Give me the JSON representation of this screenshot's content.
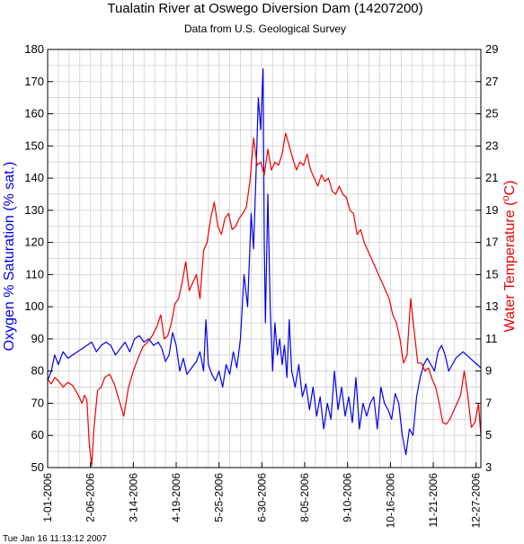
{
  "chart_data": {
    "type": "line",
    "title": "Tualatin River at Oswego Diversion Dam (14207200)",
    "subtitle": "Data from U.S. Geological Survey",
    "xlabel": "",
    "y_left": {
      "label": "Oxygen % Saturation (% sat.)",
      "range": [
        50,
        180
      ],
      "ticks": [
        50,
        60,
        70,
        80,
        90,
        100,
        110,
        120,
        130,
        140,
        150,
        160,
        170,
        180
      ],
      "color": "#0000ee"
    },
    "y_right": {
      "label_main": "Water Temperature (",
      "label_sup": "o",
      "label_end": "C)",
      "range": [
        3,
        29
      ],
      "ticks": [
        3,
        5,
        7,
        9,
        11,
        13,
        15,
        17,
        19,
        21,
        23,
        25,
        27,
        29
      ],
      "color": "#ee0000"
    },
    "x_range": [
      "2006-01-01",
      "2006-12-31"
    ],
    "x_ticks": [
      {
        "date": "2006-01-01",
        "label": "1-01-2006"
      },
      {
        "date": "2006-02-06",
        "label": "2-06-2006"
      },
      {
        "date": "2006-03-14",
        "label": "3-14-2006"
      },
      {
        "date": "2006-04-19",
        "label": "4-19-2006"
      },
      {
        "date": "2006-05-25",
        "label": "5-25-2006"
      },
      {
        "date": "2006-06-30",
        "label": "6-30-2006"
      },
      {
        "date": "2006-08-05",
        "label": "8-05-2006"
      },
      {
        "date": "2006-09-10",
        "label": "9-10-2006"
      },
      {
        "date": "2006-10-16",
        "label": "10-16-2006"
      },
      {
        "date": "2006-11-21",
        "label": "11-21-2006"
      },
      {
        "date": "2006-12-27",
        "label": "12-27-2006"
      }
    ],
    "grid": true,
    "series": [
      {
        "axis": "left",
        "color": "#0000ee",
        "x": [
          "2006-01-01",
          "2006-01-04",
          "2006-01-07",
          "2006-01-10",
          "2006-01-14",
          "2006-01-18",
          "2006-01-22",
          "2006-01-26",
          "2006-01-30",
          "2006-02-03",
          "2006-02-07",
          "2006-02-11",
          "2006-02-15",
          "2006-02-19",
          "2006-02-23",
          "2006-02-27",
          "2006-03-03",
          "2006-03-07",
          "2006-03-11",
          "2006-03-15",
          "2006-03-19",
          "2006-03-23",
          "2006-03-27",
          "2006-03-31",
          "2006-04-04",
          "2006-04-07",
          "2006-04-10",
          "2006-04-13",
          "2006-04-16",
          "2006-04-19",
          "2006-04-22",
          "2006-04-25",
          "2006-04-28",
          "2006-05-02",
          "2006-05-06",
          "2006-05-09",
          "2006-05-12",
          "2006-05-14",
          "2006-05-16",
          "2006-05-19",
          "2006-05-22",
          "2006-05-25",
          "2006-05-28",
          "2006-05-31",
          "2006-06-03",
          "2006-06-06",
          "2006-06-09",
          "2006-06-12",
          "2006-06-15",
          "2006-06-18",
          "2006-06-21",
          "2006-06-23",
          "2006-06-25",
          "2006-06-27",
          "2006-06-29",
          "2006-07-01",
          "2006-07-02",
          "2006-07-03",
          "2006-07-05",
          "2006-07-07",
          "2006-07-09",
          "2006-07-11",
          "2006-07-13",
          "2006-07-15",
          "2006-07-17",
          "2006-07-19",
          "2006-07-21",
          "2006-07-23",
          "2006-07-25",
          "2006-07-28",
          "2006-07-31",
          "2006-08-03",
          "2006-08-06",
          "2006-08-09",
          "2006-08-12",
          "2006-08-15",
          "2006-08-18",
          "2006-08-21",
          "2006-08-24",
          "2006-08-27",
          "2006-08-30",
          "2006-09-02",
          "2006-09-05",
          "2006-09-08",
          "2006-09-11",
          "2006-09-14",
          "2006-09-17",
          "2006-09-20",
          "2006-09-23",
          "2006-09-26",
          "2006-09-29",
          "2006-10-02",
          "2006-10-05",
          "2006-10-08",
          "2006-10-11",
          "2006-10-14",
          "2006-10-17",
          "2006-10-20",
          "2006-10-23",
          "2006-10-26",
          "2006-10-29",
          "2006-11-01",
          "2006-11-04",
          "2006-11-07",
          "2006-11-10",
          "2006-11-13",
          "2006-11-16",
          "2006-11-19",
          "2006-11-22",
          "2006-11-25",
          "2006-11-28",
          "2006-12-01",
          "2006-12-04",
          "2006-12-07",
          "2006-12-10",
          "2006-12-13",
          "2006-12-16",
          "2006-12-19",
          "2006-12-22",
          "2006-12-25",
          "2006-12-28",
          "2006-12-31"
        ],
        "y": [
          77,
          80,
          85,
          82,
          86,
          84,
          85,
          86,
          87,
          88,
          89,
          86,
          88,
          89,
          88,
          85,
          87,
          89,
          86,
          90,
          91,
          89,
          90,
          88,
          89,
          87,
          83,
          85,
          92,
          88,
          80,
          84,
          79,
          81,
          83,
          86,
          80,
          96,
          82,
          79,
          77,
          80,
          75,
          82,
          79,
          86,
          81,
          90,
          110,
          100,
          129,
          118,
          140,
          165,
          155,
          174,
          120,
          95,
          135,
          100,
          80,
          95,
          85,
          90,
          82,
          88,
          78,
          96,
          80,
          75,
          82,
          72,
          76,
          68,
          75,
          66,
          72,
          62,
          70,
          65,
          80,
          68,
          75,
          66,
          72,
          64,
          78,
          62,
          70,
          66,
          70,
          72,
          62,
          75,
          70,
          68,
          65,
          73,
          70,
          60,
          54,
          62,
          60,
          72,
          78,
          82,
          84,
          82,
          80,
          86,
          88,
          85,
          80,
          82,
          84,
          85,
          86,
          85,
          84,
          83,
          82,
          81
        ]
      },
      {
        "axis": "right",
        "color": "#ee0000",
        "x": [
          "2006-01-01",
          "2006-01-04",
          "2006-01-07",
          "2006-01-10",
          "2006-01-14",
          "2006-01-18",
          "2006-01-22",
          "2006-01-26",
          "2006-01-30",
          "2006-02-01",
          "2006-02-03",
          "2006-02-05",
          "2006-02-07",
          "2006-02-09",
          "2006-02-12",
          "2006-02-15",
          "2006-02-18",
          "2006-02-22",
          "2006-02-26",
          "2006-03-02",
          "2006-03-06",
          "2006-03-10",
          "2006-03-14",
          "2006-03-18",
          "2006-03-22",
          "2006-03-26",
          "2006-03-30",
          "2006-04-03",
          "2006-04-06",
          "2006-04-09",
          "2006-04-12",
          "2006-04-15",
          "2006-04-18",
          "2006-04-21",
          "2006-04-24",
          "2006-04-27",
          "2006-04-30",
          "2006-05-03",
          "2006-05-06",
          "2006-05-09",
          "2006-05-12",
          "2006-05-15",
          "2006-05-18",
          "2006-05-21",
          "2006-05-24",
          "2006-05-27",
          "2006-05-30",
          "2006-06-02",
          "2006-06-05",
          "2006-06-08",
          "2006-06-11",
          "2006-06-14",
          "2006-06-17",
          "2006-06-20",
          "2006-06-23",
          "2006-06-26",
          "2006-06-29",
          "2006-07-02",
          "2006-07-05",
          "2006-07-08",
          "2006-07-11",
          "2006-07-14",
          "2006-07-17",
          "2006-07-20",
          "2006-07-23",
          "2006-07-26",
          "2006-07-29",
          "2006-08-01",
          "2006-08-04",
          "2006-08-07",
          "2006-08-10",
          "2006-08-13",
          "2006-08-16",
          "2006-08-19",
          "2006-08-22",
          "2006-08-25",
          "2006-08-28",
          "2006-08-31",
          "2006-09-03",
          "2006-09-06",
          "2006-09-09",
          "2006-09-12",
          "2006-09-15",
          "2006-09-18",
          "2006-09-21",
          "2006-09-24",
          "2006-09-27",
          "2006-09-30",
          "2006-10-03",
          "2006-10-06",
          "2006-10-09",
          "2006-10-12",
          "2006-10-15",
          "2006-10-18",
          "2006-10-21",
          "2006-10-24",
          "2006-10-27",
          "2006-10-30",
          "2006-11-02",
          "2006-11-05",
          "2006-11-08",
          "2006-11-11",
          "2006-11-14",
          "2006-11-17",
          "2006-11-20",
          "2006-11-23",
          "2006-11-26",
          "2006-11-29",
          "2006-12-02",
          "2006-12-05",
          "2006-12-08",
          "2006-12-11",
          "2006-12-14",
          "2006-12-17",
          "2006-12-20",
          "2006-12-23",
          "2006-12-26",
          "2006-12-29",
          "2006-12-31"
        ],
        "y": [
          8.5,
          8.2,
          8.6,
          8.4,
          8.0,
          8.3,
          8.1,
          7.6,
          7.0,
          7.5,
          7.2,
          4.5,
          3.1,
          5.5,
          7.8,
          8.0,
          8.6,
          8.8,
          8.2,
          7.2,
          6.2,
          8.0,
          9.0,
          9.8,
          10.5,
          10.8,
          11.2,
          11.8,
          12.5,
          11.0,
          11.2,
          12.0,
          13.2,
          13.5,
          14.5,
          15.8,
          14.0,
          14.5,
          15.0,
          13.5,
          16.5,
          17.0,
          18.5,
          19.5,
          18.0,
          17.5,
          18.5,
          18.8,
          17.8,
          18.0,
          18.5,
          18.8,
          19.2,
          20.8,
          23.5,
          21.8,
          22.0,
          21.2,
          22.8,
          21.5,
          22.0,
          21.8,
          22.5,
          23.8,
          23.0,
          22.2,
          21.5,
          22.0,
          21.8,
          22.5,
          21.5,
          21.0,
          20.5,
          21.2,
          20.8,
          21.0,
          20.2,
          20.0,
          20.5,
          20.0,
          19.8,
          19.0,
          18.8,
          17.5,
          17.8,
          17.0,
          16.5,
          16.0,
          15.5,
          15.0,
          14.5,
          14.0,
          13.5,
          12.5,
          12.0,
          11.0,
          9.5,
          10.0,
          13.5,
          11.5,
          9.5,
          9.5,
          9.0,
          9.2,
          8.5,
          8.0,
          7.0,
          5.8,
          5.7,
          6.0,
          6.5,
          7.0,
          7.5,
          9.0,
          7.5,
          5.5,
          5.8,
          7.0,
          5.0
        ]
      }
    ]
  },
  "footer": {
    "timestamp": "Tue Jan 16 11:13:12 2007"
  }
}
